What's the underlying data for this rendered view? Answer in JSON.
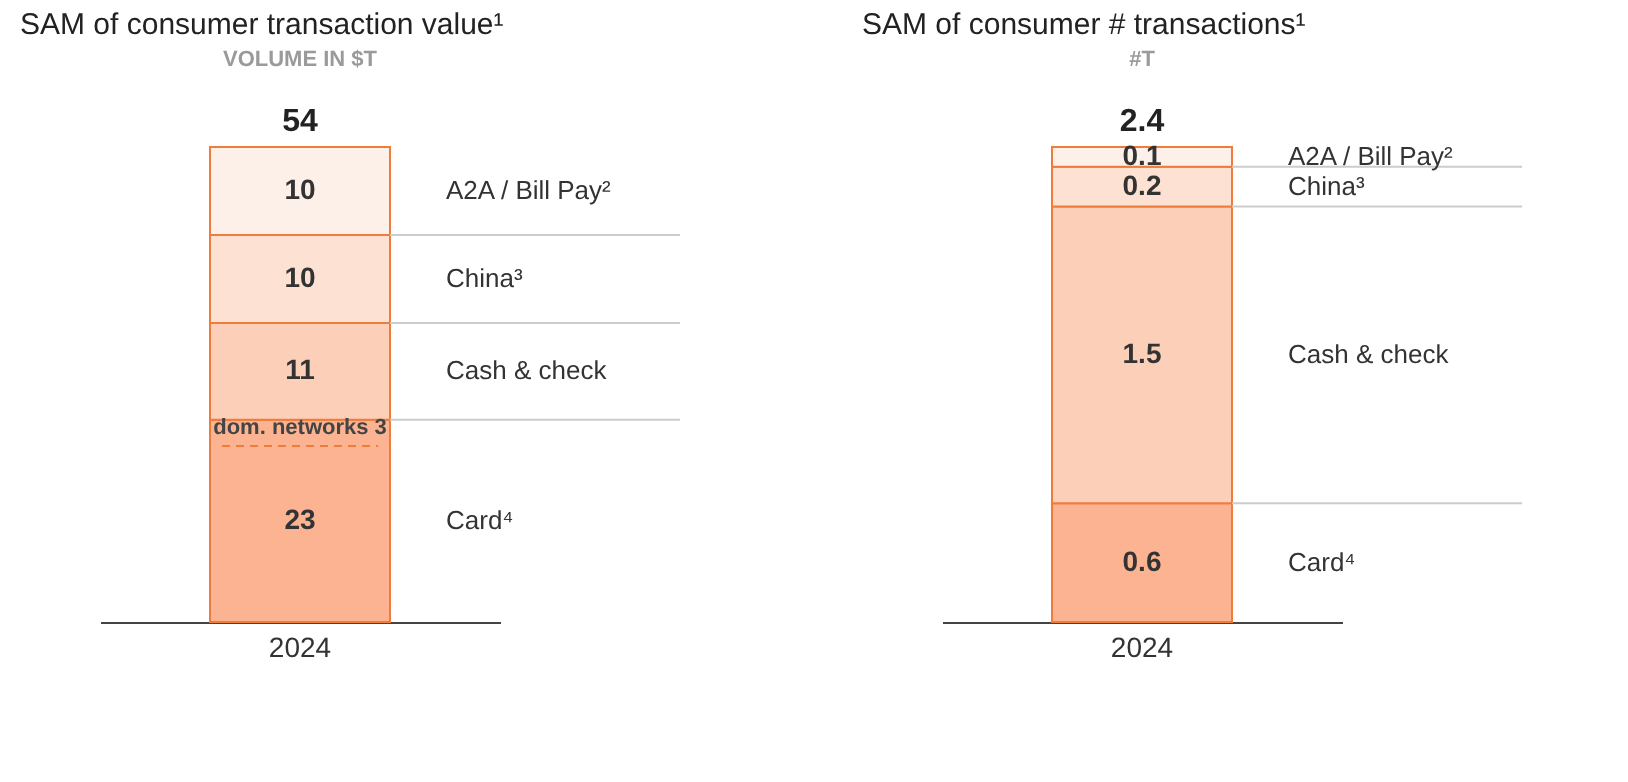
{
  "chart_data": [
    {
      "type": "bar",
      "title": "SAM of consumer transaction value¹",
      "subtitle": "VOLUME IN $T",
      "categories": [
        "2024"
      ],
      "stacked": true,
      "data_labels": true,
      "totals": [
        "54"
      ],
      "series": [
        {
          "name": "Card⁴",
          "color": "#fbb391",
          "values": [
            23
          ]
        },
        {
          "name": "Cash & check",
          "color": "#fcd0b8",
          "values": [
            11
          ]
        },
        {
          "name": "China³",
          "color": "#fde2d3",
          "values": [
            10
          ]
        },
        {
          "name": "A2A / Bill Pay²",
          "color": "#fdf0e9",
          "values": [
            10
          ]
        }
      ],
      "ref_lines": [
        {
          "axis": "y",
          "value": 20,
          "label": "dom. networks 3",
          "color": "#f07c3c",
          "line_style": "dashed"
        }
      ]
    },
    {
      "type": "bar",
      "title": "SAM of consumer # transactions¹",
      "subtitle": "#T",
      "categories": [
        "2024"
      ],
      "stacked": true,
      "data_labels": true,
      "totals": [
        "2.4"
      ],
      "series": [
        {
          "name": "Card⁴",
          "color": "#fbb391",
          "values": [
            0.6
          ]
        },
        {
          "name": "Cash & check",
          "color": "#fcd0b8",
          "values": [
            1.5
          ]
        },
        {
          "name": "China³",
          "color": "#fde2d3",
          "values": [
            0.2
          ]
        },
        {
          "name": "A2A / Bill Pay²",
          "color": "#fdf0e9",
          "values": [
            0.1
          ]
        }
      ]
    }
  ]
}
